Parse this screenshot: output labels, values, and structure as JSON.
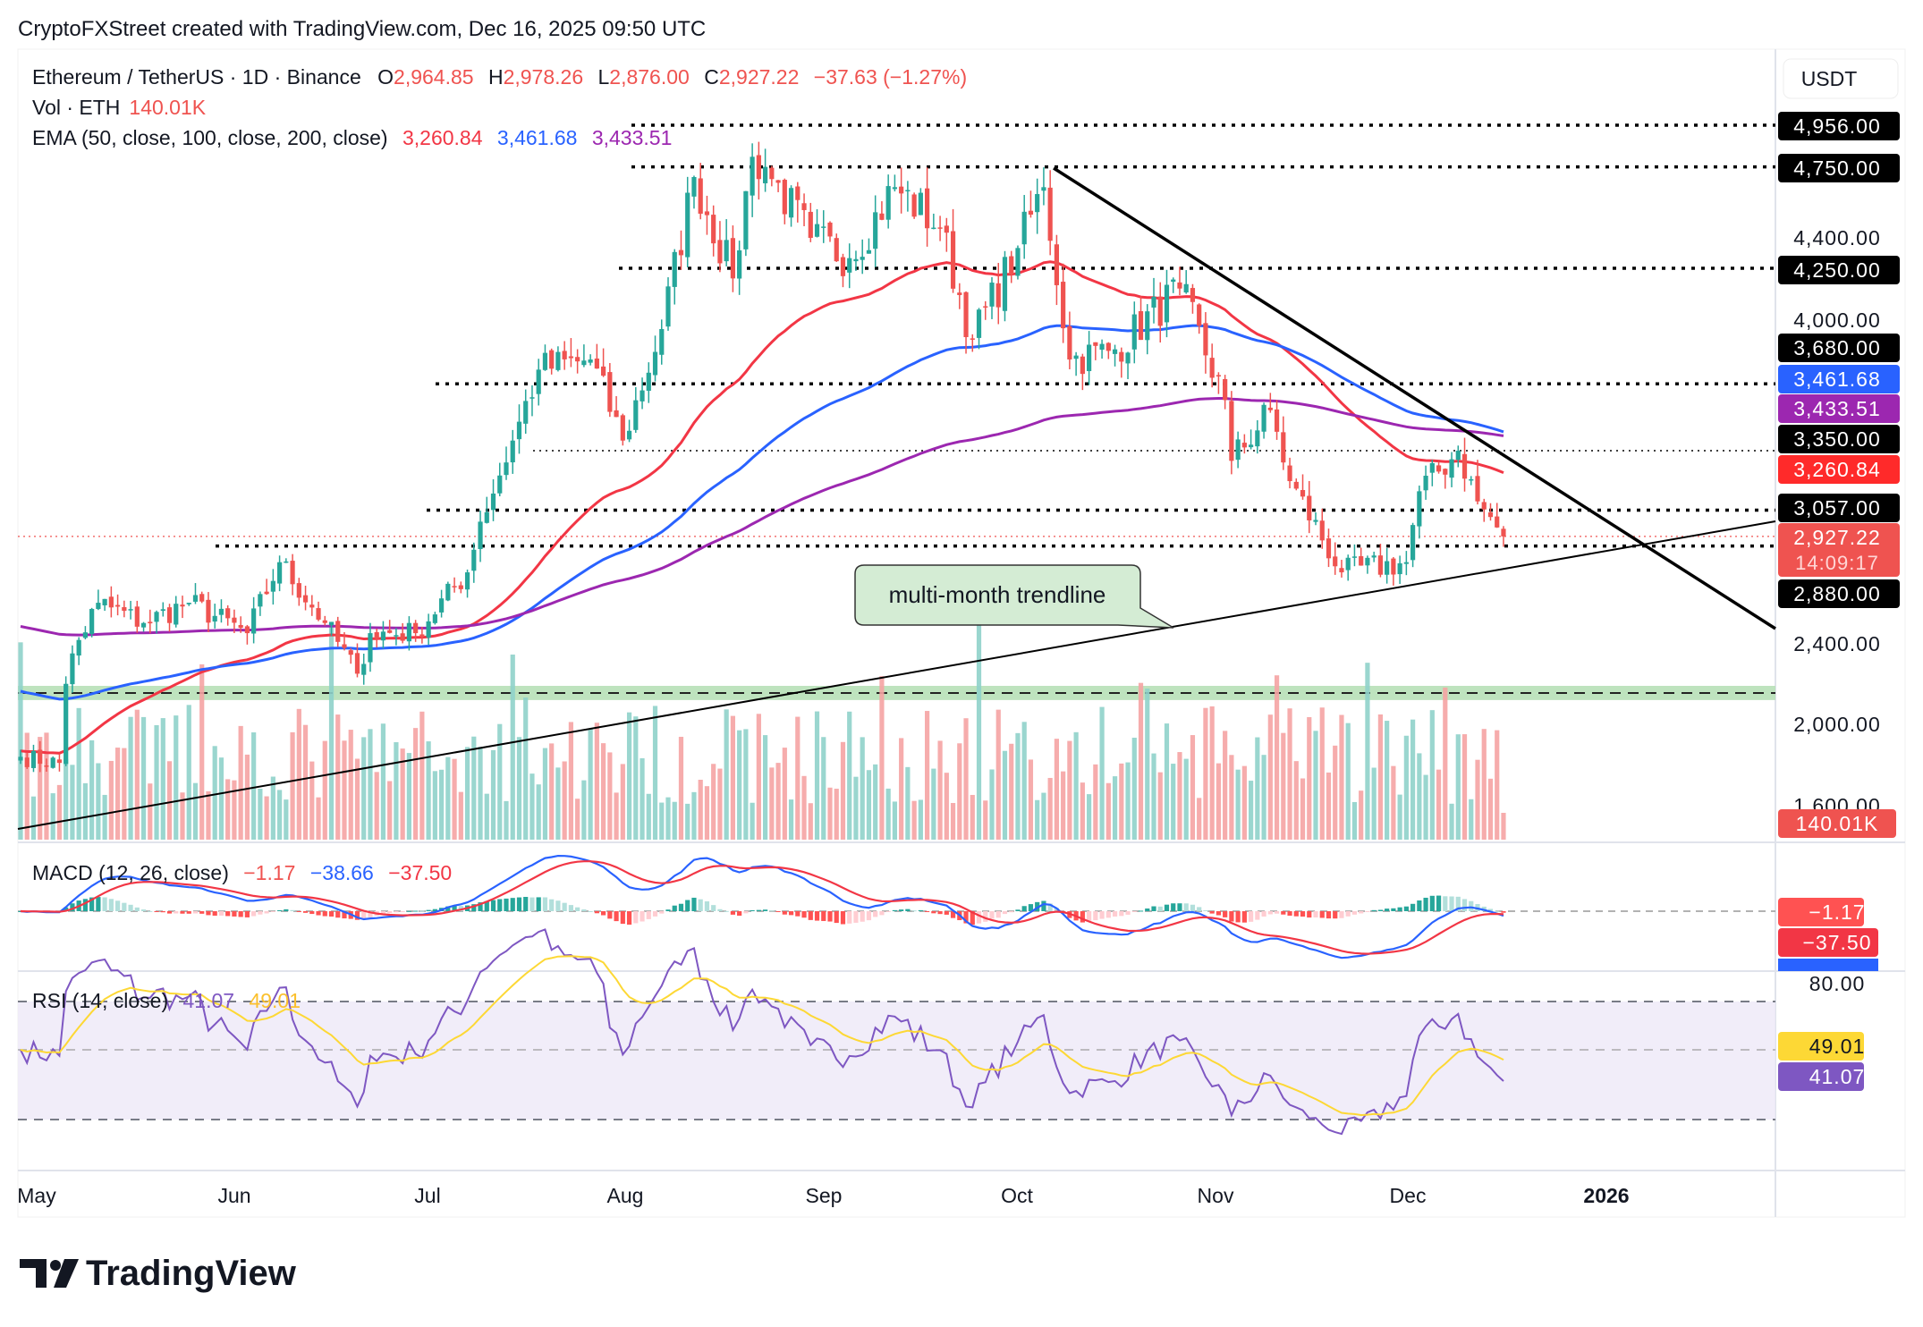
{
  "attribution": "CryptoFXStreet created with TradingView.com, Dec 16, 2025 09:50 UTC",
  "legend": {
    "symbol": "Ethereum / TetherUS · 1D · Binance",
    "o_label": "O",
    "o": "2,964.85",
    "h_label": "H",
    "h": "2,978.26",
    "l_label": "L",
    "l": "2,876.00",
    "c_label": "C",
    "c": "2,927.22",
    "change": "−37.63 (−1.27%)",
    "vol_label": "Vol · ETH",
    "vol": "140.01K",
    "ema_label": "EMA (50, close, 100, close, 200, close)",
    "ema50": "3,260.84",
    "ema100": "3,461.68",
    "ema200": "3,433.51",
    "macd_label": "MACD (12, 26, close)",
    "macd_hist": "−1.17",
    "macd_line": "−38.66",
    "macd_signal": "−37.50",
    "rsi_label": "RSI (14, close)",
    "rsi": "41.07",
    "rsi_ma": "49.01"
  },
  "axis": {
    "currency": "USDT",
    "price_ticks": [
      "4,400.00",
      "4,000.00",
      "2,400.00",
      "2,000.00",
      "1,600.00"
    ],
    "level_tags": [
      "4,956.00",
      "4,750.00",
      "4,250.00",
      "3,680.00",
      "3,350.00",
      "3,057.00",
      "2,880.00"
    ],
    "ema50_tag": "3,260.84",
    "ema100_tag": "3,461.68",
    "ema200_tag": "3,433.51",
    "last_price": "2,927.22",
    "countdown": "14:09:17",
    "volume_tag": "140.01K",
    "macd_tags": [
      "−1.17",
      "−37.50",
      "−38.66"
    ],
    "rsi_tick": "80.00",
    "rsi_ma_tag": "49.01",
    "rsi_tag": "41.07",
    "time_ticks": [
      "May",
      "Jun",
      "Jul",
      "Aug",
      "Sep",
      "Oct",
      "Nov",
      "Dec",
      "2026"
    ]
  },
  "annotation": {
    "trendline_label": "multi-month trendline"
  },
  "brand": "TradingView",
  "colors": {
    "up": "#26a69a",
    "down": "#ef5350",
    "ema50": "#f23645",
    "ema100": "#2962ff",
    "ema200": "#9c27b0",
    "rsi": "#7e57c2",
    "rsi_ma": "#fdd835",
    "zone": "#b7e0b7"
  },
  "chart_data": {
    "type": "candlestick",
    "title": "Ethereum / TetherUS · 1D · Binance",
    "ylim": [
      1500,
      5100
    ],
    "y_scale": "linear",
    "x_range": [
      "2025-05-01",
      "2025-12-31"
    ],
    "approx_close_keypoints": [
      [
        "2025-05-01",
        1840
      ],
      [
        "2025-05-07",
        1810
      ],
      [
        "2025-05-08",
        2200
      ],
      [
        "2025-05-09",
        2350
      ],
      [
        "2025-05-13",
        2600
      ],
      [
        "2025-05-20",
        2500
      ],
      [
        "2025-05-27",
        2600
      ],
      [
        "2025-06-05",
        2450
      ],
      [
        "2025-06-10",
        2800
      ],
      [
        "2025-06-17",
        2500
      ],
      [
        "2025-06-22",
        2250
      ],
      [
        "2025-06-24",
        2450
      ],
      [
        "2025-07-01",
        2450
      ],
      [
        "2025-07-09",
        2750
      ],
      [
        "2025-07-11",
        3000
      ],
      [
        "2025-07-16",
        3400
      ],
      [
        "2025-07-20",
        3750
      ],
      [
        "2025-07-28",
        3800
      ],
      [
        "2025-08-02",
        3400
      ],
      [
        "2025-08-08",
        3950
      ],
      [
        "2025-08-13",
        4700
      ],
      [
        "2025-08-19",
        4200
      ],
      [
        "2025-08-22",
        4800
      ],
      [
        "2025-08-24",
        4750
      ],
      [
        "2025-08-31",
        4400
      ],
      [
        "2025-09-06",
        4300
      ],
      [
        "2025-09-13",
        4650
      ],
      [
        "2025-09-20",
        4450
      ],
      [
        "2025-09-25",
        3900
      ],
      [
        "2025-10-02",
        4350
      ],
      [
        "2025-10-06",
        4650
      ],
      [
        "2025-10-10",
        3800
      ],
      [
        "2025-10-17",
        3850
      ],
      [
        "2025-10-27",
        4150
      ],
      [
        "2025-11-03",
        3600
      ],
      [
        "2025-11-04",
        3300
      ],
      [
        "2025-11-10",
        3550
      ],
      [
        "2025-11-13",
        3200
      ],
      [
        "2025-11-21",
        2750
      ],
      [
        "2025-12-01",
        2800
      ],
      [
        "2025-12-03",
        3150
      ],
      [
        "2025-12-09",
        3350
      ],
      [
        "2025-12-12",
        3100
      ],
      [
        "2025-12-16",
        2927.22
      ]
    ],
    "horizontal_levels": [
      4956,
      4750,
      4250,
      3680,
      3350,
      3057,
      2880
    ],
    "support_zone": [
      2120,
      2190
    ],
    "last": {
      "open": 2964.85,
      "high": 2978.26,
      "low": 2876.0,
      "close": 2927.22,
      "volume": "140.01K"
    },
    "ema": {
      "50": 3260.84,
      "100": 3461.68,
      "200": 3433.51
    },
    "macd": {
      "hist": -1.17,
      "macd": -38.66,
      "signal": -37.5
    },
    "rsi": {
      "value": 41.07,
      "ma": 49.01,
      "bands": [
        30,
        50,
        70
      ]
    },
    "trendlines": [
      "descending resistance from early-October high",
      "multi-month ascending trendline"
    ]
  }
}
